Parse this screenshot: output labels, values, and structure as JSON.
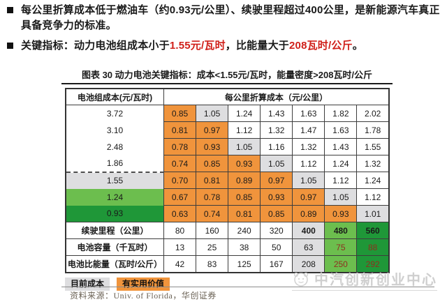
{
  "colors": {
    "orange": "#F0943C",
    "gray": "#DEDEE0",
    "lightgreen": "#6CBE4E",
    "darkgreen": "#1F9738",
    "red": "#D0201A",
    "maroon": "#8E2F1E",
    "watermark": "#CFCFCF"
  },
  "bullets": [
    {
      "segments": [
        {
          "t": "每公里折算成本低于燃油车（约0.93元/公里）、续驶里程超过400公里，是新能源汽车真正具备竞争力的标准。",
          "red": false
        }
      ]
    },
    {
      "segments": [
        {
          "t": "关键指标：动力电池组成本小于",
          "red": false
        },
        {
          "t": "1.55元/瓦时",
          "red": true
        },
        {
          "t": "，比能量大于",
          "red": false
        },
        {
          "t": "208瓦时/公斤",
          "red": true
        },
        {
          "t": "。",
          "red": false
        }
      ]
    }
  ],
  "chart": {
    "title": "图表 30 动力电池关键指标：成本<1.55元/瓦时，能量密度>208瓦时/公斤",
    "header": {
      "battery_cost": "电池组成本(元/瓦时)",
      "per_km_cost": "每公里折算成本（元/公里）"
    },
    "cost_rows": [
      {
        "label": "3.72",
        "label_bg": "white",
        "dashed_top": false,
        "cells": [
          {
            "v": "0.85",
            "bg": "orange"
          },
          {
            "v": "1.05",
            "bg": "gray"
          },
          {
            "v": "1.24",
            "bg": "white"
          },
          {
            "v": "1.43",
            "bg": "white"
          },
          {
            "v": "1.63",
            "bg": "white"
          },
          {
            "v": "1.82",
            "bg": "white"
          },
          {
            "v": "2.02",
            "bg": "white"
          }
        ]
      },
      {
        "label": "3.10",
        "label_bg": "white",
        "dashed_top": false,
        "cells": [
          {
            "v": "0.81",
            "bg": "orange"
          },
          {
            "v": "0.97",
            "bg": "orange"
          },
          {
            "v": "1.12",
            "bg": "white"
          },
          {
            "v": "1.32",
            "bg": "white"
          },
          {
            "v": "1.47",
            "bg": "white"
          },
          {
            "v": "1.63",
            "bg": "white"
          },
          {
            "v": "1.78",
            "bg": "white"
          }
        ]
      },
      {
        "label": "2.48",
        "label_bg": "white",
        "dashed_top": false,
        "cells": [
          {
            "v": "0.78",
            "bg": "orange"
          },
          {
            "v": "0.93",
            "bg": "orange"
          },
          {
            "v": "1.05",
            "bg": "gray"
          },
          {
            "v": "1.16",
            "bg": "white"
          },
          {
            "v": "1.32",
            "bg": "white"
          },
          {
            "v": "1.43",
            "bg": "white"
          },
          {
            "v": "1.55",
            "bg": "white"
          }
        ]
      },
      {
        "label": "1.86",
        "label_bg": "white",
        "dashed_top": false,
        "cells": [
          {
            "v": "0.74",
            "bg": "orange"
          },
          {
            "v": "0.85",
            "bg": "orange"
          },
          {
            "v": "0.93",
            "bg": "orange"
          },
          {
            "v": "1.05",
            "bg": "gray"
          },
          {
            "v": "1.12",
            "bg": "white"
          },
          {
            "v": "1.24",
            "bg": "white"
          },
          {
            "v": "1.32",
            "bg": "white"
          }
        ]
      },
      {
        "label": "1.55",
        "label_bg": "gray",
        "dashed_top": true,
        "cells": [
          {
            "v": "0.70",
            "bg": "orange"
          },
          {
            "v": "0.81",
            "bg": "orange"
          },
          {
            "v": "0.89",
            "bg": "orange"
          },
          {
            "v": "0.97",
            "bg": "orange"
          },
          {
            "v": "1.05",
            "bg": "gray"
          },
          {
            "v": "1.12",
            "bg": "white"
          },
          {
            "v": "1.24",
            "bg": "white"
          }
        ]
      },
      {
        "label": "1.24",
        "label_bg": "lightgreen",
        "dashed_top": false,
        "cells": [
          {
            "v": "0.67",
            "bg": "orange"
          },
          {
            "v": "0.78",
            "bg": "orange"
          },
          {
            "v": "0.85",
            "bg": "orange"
          },
          {
            "v": "0.93",
            "bg": "orange"
          },
          {
            "v": "0.97",
            "bg": "orange"
          },
          {
            "v": "1.05",
            "bg": "gray"
          },
          {
            "v": "1.12",
            "bg": "white"
          }
        ]
      },
      {
        "label": "0.93",
        "label_bg": "darkgreen",
        "dashed_top": false,
        "cells": [
          {
            "v": "0.63",
            "bg": "orange"
          },
          {
            "v": "0.74",
            "bg": "orange"
          },
          {
            "v": "0.81",
            "bg": "orange"
          },
          {
            "v": "0.85",
            "bg": "orange"
          },
          {
            "v": "0.89",
            "bg": "orange"
          },
          {
            "v": "0.93",
            "bg": "orange"
          },
          {
            "v": "1.01",
            "bg": "gray"
          }
        ]
      }
    ],
    "info_rows": [
      {
        "label": "续驶里程（公里）",
        "cells": [
          {
            "v": "80",
            "bg": "white"
          },
          {
            "v": "160",
            "bg": "white"
          },
          {
            "v": "240",
            "bg": "white"
          },
          {
            "v": "320",
            "bg": "white"
          },
          {
            "v": "400",
            "bg": "gray",
            "bold": true
          },
          {
            "v": "480",
            "bg": "lightgreen",
            "bold": true
          },
          {
            "v": "560",
            "bg": "darkgreen",
            "bold": true
          }
        ]
      },
      {
        "label": "电池容量（千瓦时）",
        "cells": [
          {
            "v": "13",
            "bg": "white"
          },
          {
            "v": "25",
            "bg": "white"
          },
          {
            "v": "38",
            "bg": "white"
          },
          {
            "v": "50",
            "bg": "white"
          },
          {
            "v": "63",
            "bg": "gray"
          },
          {
            "v": "75",
            "bg": "lightgreen",
            "fg": "maroon"
          },
          {
            "v": "88",
            "bg": "darkgreen",
            "fg": "maroon"
          }
        ]
      },
      {
        "label": "电池比能量（瓦时/公斤）",
        "cells": [
          {
            "v": "42",
            "bg": "white"
          },
          {
            "v": "83",
            "bg": "white"
          },
          {
            "v": "125",
            "bg": "white"
          },
          {
            "v": "167",
            "bg": "white"
          },
          {
            "v": "208",
            "bg": "gray"
          },
          {
            "v": "250",
            "bg": "lightgreen",
            "fg": "maroon"
          },
          {
            "v": "292",
            "bg": "darkgreen",
            "fg": "maroon"
          }
        ]
      }
    ],
    "legend": [
      {
        "label": "目前成本",
        "bg": "gray"
      },
      {
        "label": "有实用价值",
        "bg": "orange"
      }
    ],
    "source": "资料来源：Univ. of Florida，华创证券",
    "watermark": "中汽创新创业中心"
  }
}
